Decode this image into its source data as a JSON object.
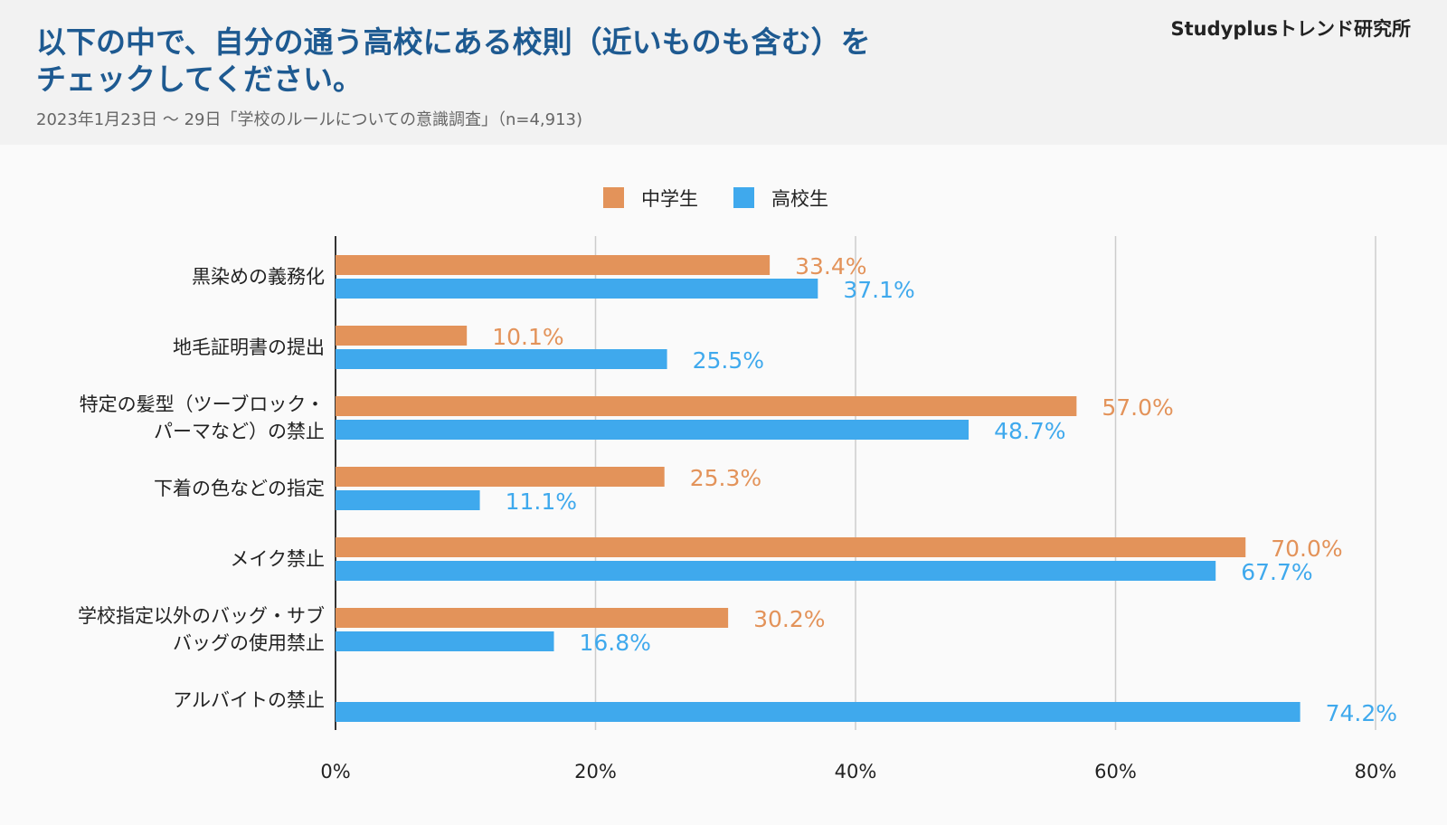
{
  "header": {
    "title_line1": "以下の中で、自分の通う高校にある校則（近いものも含む）を",
    "title_line2": "チェックしてください。",
    "subtitle": "2023年1月23日 〜 29日「学校のルールについての意識調査」（n=4,913)",
    "brand": "Studyplusトレンド研究所"
  },
  "chart_data": {
    "type": "bar",
    "orientation": "horizontal",
    "categories": [
      [
        "黒染めの義務化"
      ],
      [
        "地毛証明書の提出"
      ],
      [
        "特定の髪型（ツーブロック・",
        "パーマなど）の禁止"
      ],
      [
        "下着の色などの指定"
      ],
      [
        "メイク禁止"
      ],
      [
        "学校指定以外のバッグ・サブ",
        "バッグの使用禁止"
      ],
      [
        "アルバイトの禁止"
      ]
    ],
    "series": [
      {
        "name": "中学生",
        "color": "#e3935a",
        "values": [
          33.4,
          10.1,
          57.0,
          25.3,
          70.0,
          30.2,
          null
        ]
      },
      {
        "name": "高校生",
        "color": "#3fa9ed",
        "values": [
          37.1,
          25.5,
          48.7,
          11.1,
          67.7,
          16.8,
          74.2
        ]
      }
    ],
    "xlim": [
      0,
      80
    ],
    "xticks": [
      0,
      20,
      40,
      60,
      80
    ],
    "tick_suffix": "%",
    "value_suffix": "%",
    "grid": true,
    "legend_position": "top"
  }
}
